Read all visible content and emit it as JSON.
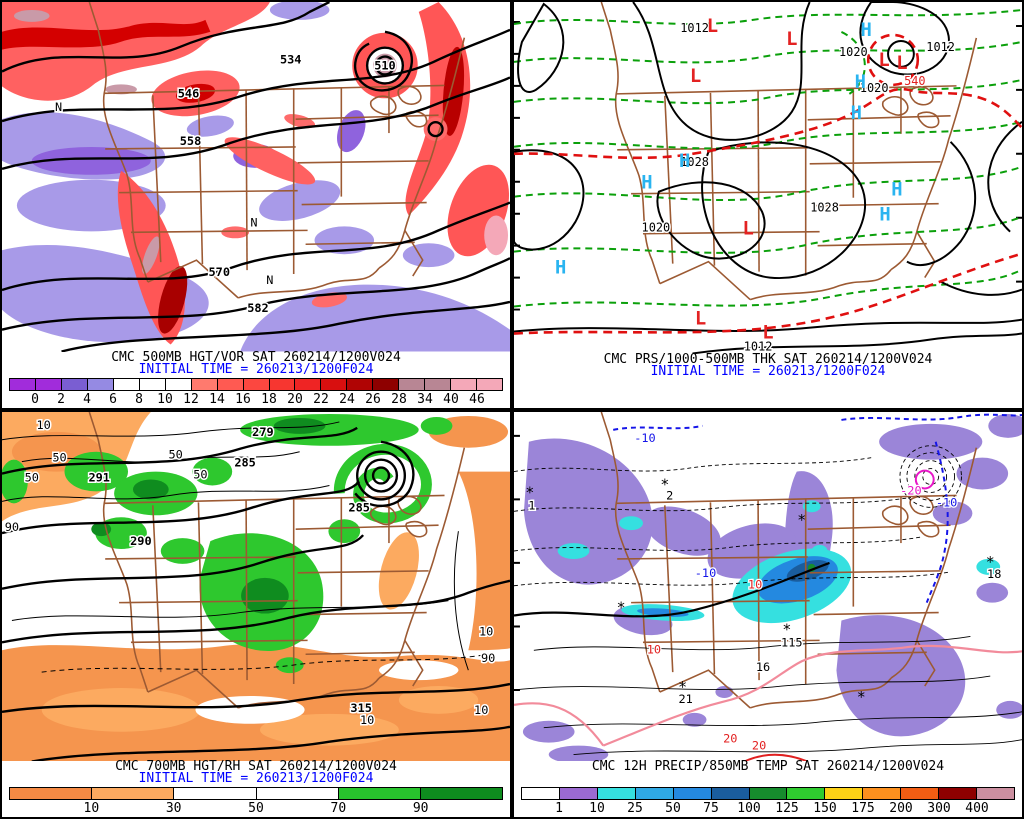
{
  "panels": [
    {
      "name": "500mb-hgt-vor",
      "title": "CMC 500MB HGT/VOR SAT 260214/1200V024",
      "initial_time": "INITIAL TIME = 260213/1200F024",
      "colorbar": {
        "ticks": [
          "0",
          "2",
          "4",
          "6",
          "8",
          "10",
          "12",
          "14",
          "16",
          "18",
          "20",
          "22",
          "24",
          "26",
          "28",
          "34",
          "40",
          "46"
        ],
        "segment_colors": [
          "#a12cdb",
          "#a12cdb",
          "#7a5ed2",
          "#958ae3",
          "#ffffff",
          "#ffffff",
          "#ffffff",
          "#ff7a6e",
          "#ff5a52",
          "#fc4740",
          "#f73630",
          "#ef2424",
          "#d80f0f",
          "#b00404",
          "#8e0000",
          "#b88694",
          "#b88694",
          "#f4a8b8",
          "#f4a8b8"
        ]
      },
      "labels": {
        "h546": "546",
        "h558": "558",
        "h570": "570",
        "h582": "582",
        "low510": "510",
        "h534": "534",
        "nmark": "N"
      }
    },
    {
      "name": "prs-1000-500mb-thk",
      "title": "CMC PRS/1000-500MB THK SAT 260214/1200V024",
      "initial_time": "INITIAL TIME = 260213/1200F024",
      "labels": {
        "p1012": "1012",
        "p1020": "1020",
        "p1028": "1028",
        "thk540": "540"
      },
      "symbols": {
        "high": "H",
        "low": "L"
      }
    },
    {
      "name": "700mb-hgt-rh",
      "title": "CMC 700MB HGT/RH SAT 260214/1200V024",
      "initial_time": "INITIAL TIME = 260213/1200F024",
      "colorbar": {
        "ticks": [
          "10",
          "30",
          "50",
          "70",
          "90"
        ],
        "segment_colors": [
          "#f58a44",
          "#fcaa60",
          "#ffffff",
          "#ffffff",
          "#28c42d",
          "#0e8c1e"
        ]
      },
      "labels": {
        "h279": "279",
        "h285": "285",
        "h291": "291",
        "h290": "290",
        "h315": "315",
        "rh10": "10",
        "rh50": "50",
        "rh90": "90"
      }
    },
    {
      "name": "12h-precip-850mb-temp",
      "title": "CMC 12H PRECIP/850MB TEMP SAT 260214/1200V024",
      "colorbar": {
        "ticks": [
          "1",
          "10",
          "25",
          "50",
          "75",
          "100",
          "125",
          "150",
          "175",
          "200",
          "300",
          "400"
        ],
        "segment_colors": [
          "#ffffff",
          "#9b6ad1",
          "#35e0e0",
          "#2fa9e4",
          "#2489e0",
          "#1a5d9e",
          "#168c2d",
          "#2fcb2f",
          "#fcd116",
          "#fc901e",
          "#f25d13",
          "#8e0000",
          "#cb8fa0"
        ]
      },
      "labels": {
        "tm10": "-10",
        "tm20": "-20",
        "tp10": "10",
        "tp20": "20",
        "amt1": "1",
        "amt2": "2",
        "amt115": "115",
        "amt21": "21",
        "amt18": "18",
        "amt16": "16",
        "snow": "*"
      }
    }
  ]
}
